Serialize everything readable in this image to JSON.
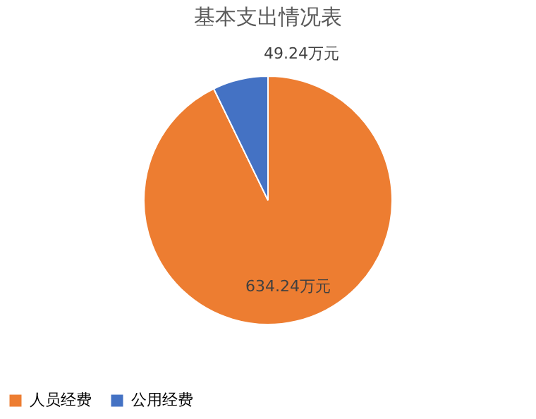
{
  "chart_data": {
    "type": "pie",
    "title": "基本支出情况表",
    "categories": [
      "人员经费",
      "公用经费"
    ],
    "values": [
      634.24,
      49.24
    ],
    "colors": [
      "#ed7d31",
      "#4472c4"
    ],
    "value_labels": [
      "634.24万元",
      "49.24万元"
    ],
    "legend": "bottom"
  }
}
